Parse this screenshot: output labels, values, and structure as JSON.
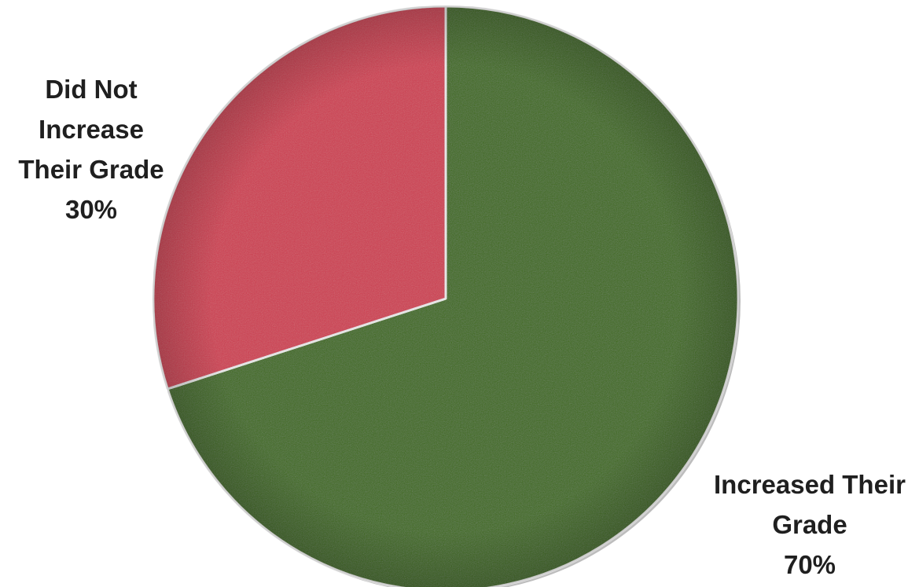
{
  "chart_data": {
    "type": "pie",
    "title": "",
    "categories": [
      "Increased Their Grade",
      "Did Not Increase Their Grade"
    ],
    "values": [
      70,
      30
    ],
    "colors": [
      "#3d6a15",
      "#cd3a50"
    ],
    "start": "12 o'clock",
    "direction": "clockwise",
    "legend": "none",
    "data_labels": [
      {
        "lines": [
          "Increased Their",
          "Grade",
          "70%"
        ]
      },
      {
        "lines": [
          "Did Not",
          "Increase",
          "Their Grade",
          "30%"
        ]
      }
    ]
  }
}
